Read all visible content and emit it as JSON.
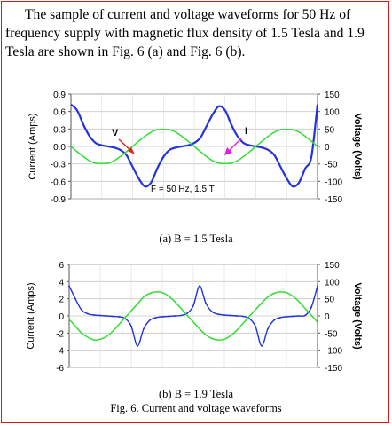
{
  "intro_text": "The sample of current and voltage waveforms for 50 Hz of frequency supply with magnetic flux density of 1.5 Tesla and 1.9 Tesla are shown in Fig. 6 (a) and Fig. 6 (b).",
  "fig_caption": "Fig. 6. Current and voltage waveforms",
  "colors": {
    "current": "#2233dd",
    "voltage": "#33dd33",
    "border": "#d11a1a",
    "arrow_v": "#dd2222",
    "arrow_i": "#dd22dd"
  },
  "chart_data": [
    {
      "type": "line",
      "caption": "(a)  B = 1.5 Tesla",
      "ylabel_left": "Current (Amps)",
      "ylabel_right": "Voltage (Volts)",
      "yticks_left": [
        "0.9",
        "0.6",
        "0.3",
        "0.0",
        "-0.3",
        "-0.6",
        "-0.9"
      ],
      "yticks_right": [
        "150",
        "100",
        "50",
        "0",
        "-50",
        "-100",
        "-150"
      ],
      "ylim_left": [
        -0.9,
        0.9
      ],
      "ylim_right": [
        -150,
        150
      ],
      "x_ms": [
        0,
        1,
        2,
        3,
        4,
        5,
        6,
        7,
        8,
        9,
        10,
        11,
        12,
        13,
        14,
        15,
        16,
        17,
        18,
        19,
        20,
        21,
        22,
        23,
        24,
        25,
        26,
        27,
        28,
        29,
        30,
        31,
        32,
        33,
        34,
        35,
        36,
        37,
        38,
        39,
        40
      ],
      "series": [
        {
          "name": "I",
          "axis": "left",
          "color": "#2233dd",
          "values": [
            0.72,
            0.62,
            0.38,
            0.18,
            0.06,
            0.02,
            0.0,
            -0.02,
            -0.06,
            -0.15,
            -0.35,
            -0.55,
            -0.69,
            -0.62,
            -0.38,
            -0.18,
            -0.06,
            -0.02,
            0.0,
            0.02,
            0.06,
            0.15,
            0.35,
            0.55,
            0.69,
            0.62,
            0.38,
            0.18,
            0.06,
            0.02,
            0.0,
            -0.02,
            -0.06,
            -0.15,
            -0.35,
            -0.55,
            -0.69,
            -0.62,
            -0.38,
            -0.18,
            0.72
          ]
        },
        {
          "name": "V",
          "axis": "right",
          "color": "#33dd33",
          "values": [
            0,
            -15,
            -29,
            -41,
            -48,
            -49,
            -48,
            -41,
            -29,
            -15,
            0,
            15,
            29,
            41,
            48,
            49,
            48,
            41,
            29,
            15,
            0,
            -15,
            -29,
            -41,
            -48,
            -49,
            -48,
            -41,
            -29,
            -15,
            0,
            15,
            29,
            41,
            48,
            49,
            48,
            41,
            29,
            15,
            0
          ]
        }
      ],
      "annotations": {
        "v_label": "V",
        "i_label": "I",
        "condition": "F = 50 Hz, 1.5 T"
      },
      "grid": true
    },
    {
      "type": "line",
      "caption": "(b) B = 1.9 Tesla",
      "ylabel_left": "Current (Amps)",
      "ylabel_right": "Voltage (Volts)",
      "yticks_left": [
        "6",
        "4",
        "2",
        "0",
        "-2",
        "-4",
        "-6"
      ],
      "yticks_right": [
        "150",
        "100",
        "50",
        "0",
        "-50",
        "-100",
        "-150"
      ],
      "ylim_left": [
        -6,
        6
      ],
      "ylim_right": [
        -150,
        150
      ],
      "x_ms": [
        0,
        1,
        2,
        3,
        4,
        5,
        6,
        7,
        8,
        9,
        10,
        11,
        12,
        13,
        14,
        15,
        16,
        17,
        18,
        19,
        20,
        21,
        22,
        23,
        24,
        25,
        26,
        27,
        28,
        29,
        30,
        31,
        32,
        33,
        34,
        35,
        36,
        37,
        38,
        39,
        40
      ],
      "series": [
        {
          "name": "I",
          "axis": "left",
          "color": "#2233dd",
          "values": [
            3.5,
            2.0,
            0.7,
            0.25,
            0.1,
            0.05,
            0.0,
            -0.05,
            -0.1,
            -0.3,
            -1.2,
            -3.5,
            -1.5,
            -0.5,
            -0.2,
            -0.1,
            -0.05,
            0.0,
            0.05,
            0.3,
            1.2,
            3.5,
            1.5,
            0.5,
            0.2,
            0.1,
            0.05,
            0.0,
            -0.05,
            -0.3,
            -1.2,
            -3.5,
            -1.5,
            -0.5,
            -0.2,
            -0.1,
            -0.05,
            0.0,
            0.05,
            1.0,
            3.5
          ]
        },
        {
          "name": "V",
          "axis": "right",
          "color": "#33dd33",
          "values": [
            -10,
            -30,
            -50,
            -62,
            -70,
            -68,
            -60,
            -45,
            -25,
            -5,
            15,
            35,
            55,
            66,
            70,
            68,
            58,
            42,
            22,
            2,
            -18,
            -38,
            -55,
            -66,
            -70,
            -68,
            -58,
            -42,
            -22,
            -2,
            18,
            38,
            55,
            66,
            70,
            68,
            58,
            42,
            22,
            2,
            -18
          ]
        }
      ],
      "grid": true
    }
  ]
}
